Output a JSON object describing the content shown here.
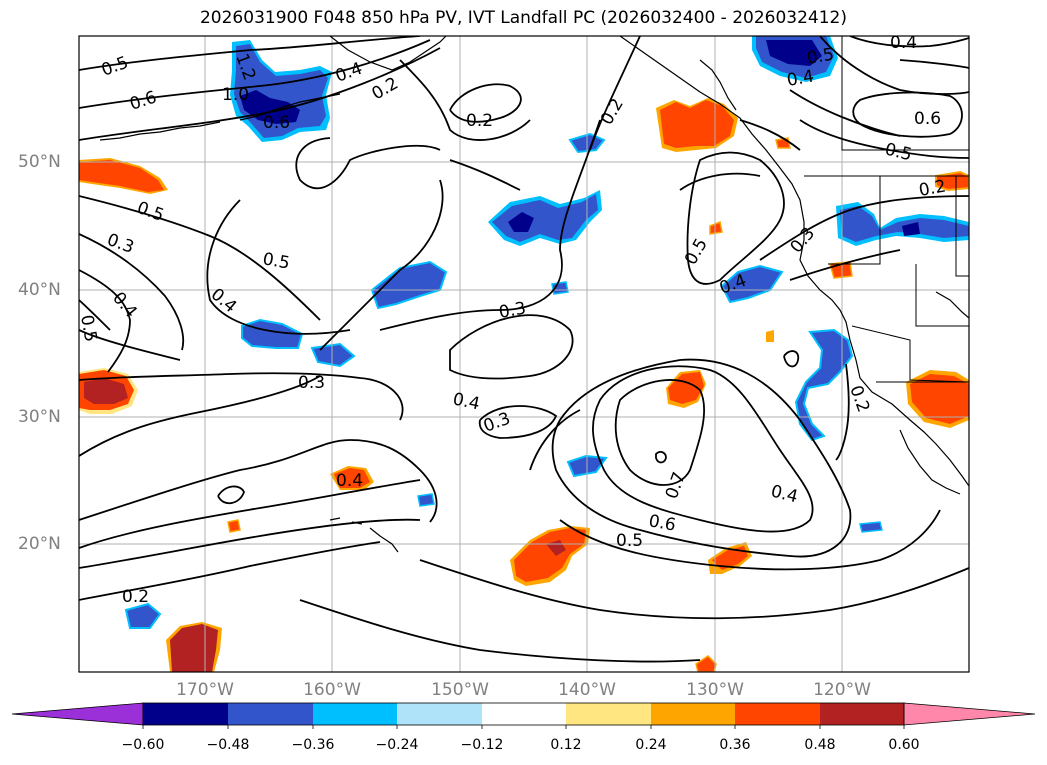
{
  "figure": {
    "title": "2026031900 F048 850 hPa PV, IVT Landfall PC (2026032400 - 2026032412)"
  },
  "axes": {
    "lat_labels": [
      "50°N",
      "40°N",
      "30°N",
      "20°N"
    ],
    "lon_labels": [
      "170°W",
      "160°W",
      "150°W",
      "140°W",
      "130°W",
      "120°W"
    ],
    "lat_range": [
      10,
      60
    ],
    "lon_range": [
      -180,
      -110
    ],
    "grid": true
  },
  "colorbar": {
    "levels": [
      "−0.60",
      "−0.48",
      "−0.36",
      "−0.24",
      "−0.12",
      "0.12",
      "0.24",
      "0.36",
      "0.48",
      "0.60"
    ],
    "colors": [
      "#9b30d9",
      "#00008b",
      "#3355cc",
      "#00bfff",
      "#aee3fa",
      "#ffffff",
      "#ffe680",
      "#ffa500",
      "#ff4500",
      "#b22222",
      "#ff88aa"
    ],
    "extend": "both"
  },
  "contour_labels": [
    "0.5",
    "0.6",
    "1.0",
    "0.6",
    "1.2",
    "0.4",
    "0.2",
    "0.2",
    "0.2",
    "0.5",
    "0.4",
    "0.4",
    "0.6",
    "0.5",
    "0.2",
    "0.5",
    "0.3",
    "0.5",
    "0.4",
    "0.4",
    "0.3",
    "0.5",
    "0.4",
    "0.3",
    "0.3",
    "0.4",
    "0.3",
    "0.2",
    "0.7",
    "0.4",
    "0.6",
    "0.5",
    "0.4",
    "0.2",
    "0.5"
  ],
  "chart_data": {
    "type": "map",
    "projection": "equirectangular",
    "lon_range": [
      -180,
      -110
    ],
    "lat_range": [
      10,
      60
    ],
    "field": "IVT Landfall PC (shaded) with 850 hPa PV contours"
  }
}
